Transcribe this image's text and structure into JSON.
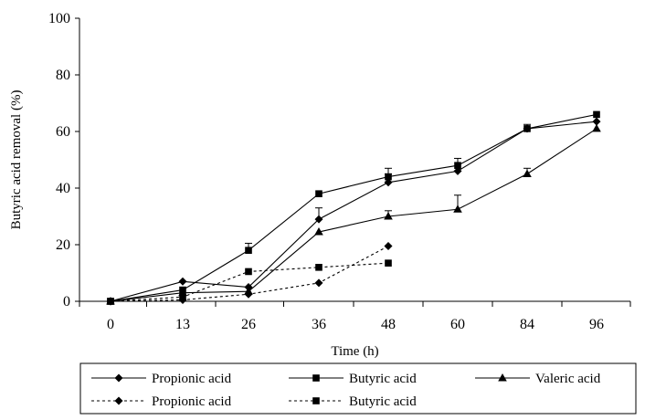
{
  "chart_data": {
    "type": "line",
    "title": "",
    "xlabel": "Time (h)",
    "ylabel": "Butyric acid removal (%)",
    "categories": [
      "0",
      "13",
      "26",
      "36",
      "48",
      "60",
      "84",
      "96"
    ],
    "ylim": [
      0,
      100
    ],
    "yticks": [
      "0",
      "20",
      "40",
      "60",
      "80",
      "100"
    ],
    "grid": false,
    "legend_position": "bottom",
    "series": [
      {
        "name": "Propionic acid",
        "line": "solid",
        "marker": "diamond",
        "values": [
          0,
          7,
          5,
          29,
          42,
          46,
          61,
          63.5
        ],
        "errors": [
          0,
          0,
          0,
          4,
          3,
          0,
          0,
          0
        ]
      },
      {
        "name": "Butyric acid",
        "line": "solid",
        "marker": "square",
        "values": [
          0,
          4,
          18,
          38,
          44,
          48,
          61,
          66
        ],
        "errors": [
          0,
          0,
          2.5,
          0,
          3,
          2.5,
          1.5,
          0
        ]
      },
      {
        "name": "Valeric acid",
        "line": "solid",
        "marker": "triangle",
        "values": [
          0,
          3,
          3.5,
          24.5,
          30,
          32.5,
          45,
          61
        ],
        "errors": [
          0,
          0,
          0,
          0,
          2,
          5,
          2,
          0
        ]
      },
      {
        "name": "Propionic acid",
        "line": "dashed",
        "marker": "diamond",
        "values": [
          0,
          0.5,
          2.5,
          6.5,
          19.5,
          null,
          null,
          null
        ],
        "errors": [
          0,
          0,
          0,
          0,
          0,
          0,
          0,
          0
        ]
      },
      {
        "name": "Butyric acid",
        "line": "dashed",
        "marker": "square",
        "values": [
          0,
          1.5,
          10.5,
          12,
          13.5,
          null,
          null,
          null
        ],
        "errors": [
          0,
          0,
          0,
          0,
          0,
          0,
          0,
          0
        ]
      }
    ]
  }
}
